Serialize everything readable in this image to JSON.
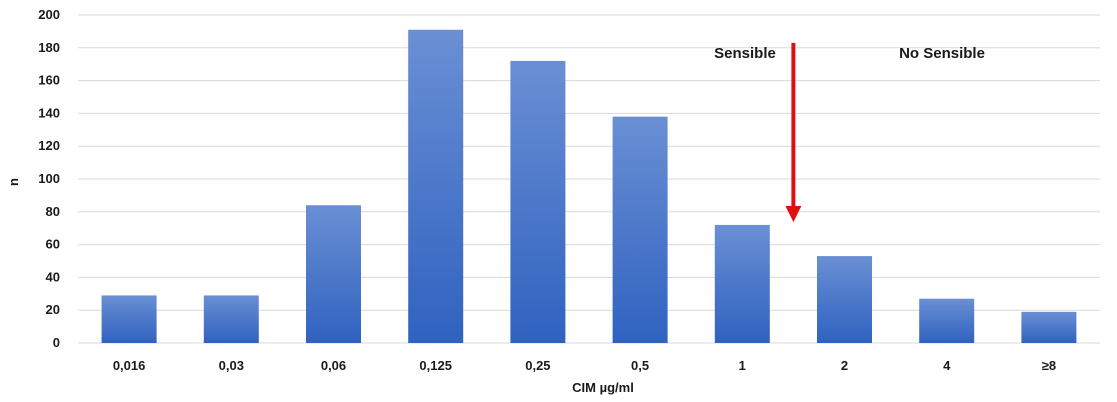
{
  "chart_data": {
    "type": "bar",
    "title": "",
    "xlabel": "CIM µg/ml",
    "ylabel": "n",
    "ylim": [
      0,
      200
    ],
    "yticks": [
      0,
      20,
      40,
      60,
      80,
      100,
      120,
      140,
      160,
      180,
      200
    ],
    "ytick_labels": [
      "0",
      "20",
      "40",
      "60",
      "80",
      "100",
      "120",
      "140",
      "160",
      "180",
      "200"
    ],
    "grid": true,
    "categories": [
      "0,016",
      "0,03",
      "0,06",
      "0,125",
      "0,25",
      "0,5",
      "1",
      "2",
      "4",
      "≥8"
    ],
    "values": [
      29,
      29,
      84,
      191,
      172,
      138,
      72,
      53,
      27,
      19
    ],
    "annotations": {
      "left_label": "Sensible",
      "right_label": "No Sensible",
      "breakpoint_arrow": {
        "between": [
          "1",
          "2"
        ],
        "from_y": 183,
        "to_y": 75
      }
    },
    "colors": {
      "bar_top": "#6a8fd4",
      "bar_bottom": "#2f62c0",
      "arrow": "#e01010",
      "grid": "#d9d9d9"
    }
  }
}
